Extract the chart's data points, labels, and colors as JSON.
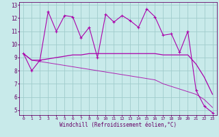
{
  "background_color": "#c8eaea",
  "grid_color": "#a0cccc",
  "line_color": "#aa00aa",
  "xlim": [
    -0.5,
    23.5
  ],
  "ylim": [
    4.6,
    13.2
  ],
  "yticks": [
    5,
    6,
    7,
    8,
    9,
    10,
    11,
    12,
    13
  ],
  "xticks": [
    0,
    1,
    2,
    3,
    4,
    5,
    6,
    7,
    8,
    9,
    10,
    11,
    12,
    13,
    14,
    15,
    16,
    17,
    18,
    19,
    20,
    21,
    22,
    23
  ],
  "xlabel": "Windchill (Refroidissement éolien,°C)",
  "series_markers": [
    9.3,
    8.0,
    8.8,
    12.5,
    11.0,
    12.2,
    12.1,
    10.5,
    11.3,
    9.0,
    12.3,
    11.7,
    12.2,
    11.8,
    11.3,
    12.7,
    12.1,
    10.7,
    10.8,
    9.4,
    11.0,
    6.5,
    5.3,
    4.8
  ],
  "series_solid": [
    9.3,
    8.8,
    8.8,
    8.9,
    9.0,
    9.1,
    9.2,
    9.2,
    9.3,
    9.3,
    9.3,
    9.3,
    9.3,
    9.3,
    9.3,
    9.3,
    9.3,
    9.2,
    9.2,
    9.2,
    9.2,
    8.5,
    7.5,
    6.2
  ],
  "series_thin": [
    9.3,
    8.8,
    8.7,
    8.6,
    8.5,
    8.4,
    8.3,
    8.2,
    8.1,
    8.0,
    7.9,
    7.8,
    7.7,
    7.6,
    7.5,
    7.4,
    7.3,
    7.0,
    6.8,
    6.6,
    6.4,
    6.2,
    5.8,
    5.2
  ]
}
